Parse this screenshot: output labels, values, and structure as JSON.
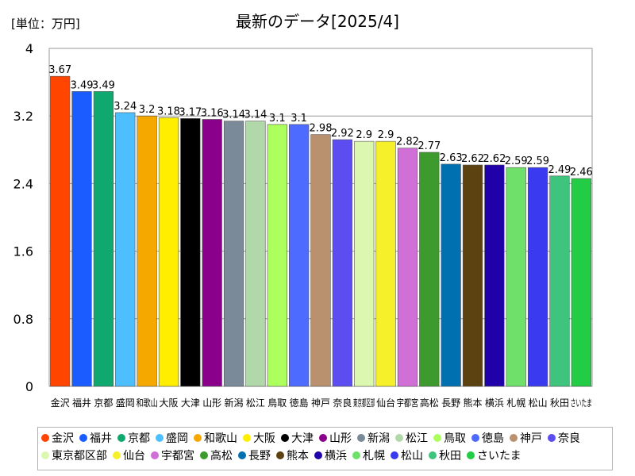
{
  "chart_data": {
    "type": "bar",
    "title": "最新のデータ[2025/4]",
    "unit_label": "[単位：万円]",
    "xlabel": "",
    "ylabel": "",
    "ylim": [
      0,
      4
    ],
    "yticks": [
      0,
      0.8,
      1.6,
      2.4,
      3.2,
      4
    ],
    "grid": true,
    "legend_position": "bottom",
    "categories": [
      "金沢",
      "福井",
      "京都",
      "盛岡",
      "和歌山",
      "大阪",
      "大津",
      "山形",
      "新潟",
      "松江",
      "鳥取",
      "徳島",
      "神戸",
      "奈良",
      "東京都区部",
      "仙台",
      "宇都宮",
      "高松",
      "長野",
      "熊本",
      "横浜",
      "札幌",
      "松山",
      "秋田",
      "さいたま"
    ],
    "values": [
      3.67,
      3.49,
      3.49,
      3.24,
      3.2,
      3.18,
      3.17,
      3.16,
      3.14,
      3.14,
      3.1,
      3.1,
      2.98,
      2.92,
      2.9,
      2.9,
      2.82,
      2.77,
      2.63,
      2.62,
      2.62,
      2.59,
      2.59,
      2.49,
      2.46
    ],
    "colors": [
      "#ff4500",
      "#1a5cff",
      "#0fa86e",
      "#4dbfff",
      "#f5a800",
      "#ffee00",
      "#000000",
      "#8b008b",
      "#7a8a99",
      "#b0d8a8",
      "#adff5e",
      "#4d6bff",
      "#b9916e",
      "#5b4df0",
      "#dcf7b0",
      "#f6f02a",
      "#d06fd6",
      "#3d9b2e",
      "#0070b0",
      "#5c4211",
      "#2000a8",
      "#6fe06a",
      "#3a3af0",
      "#3fc47e",
      "#22cc44"
    ]
  }
}
